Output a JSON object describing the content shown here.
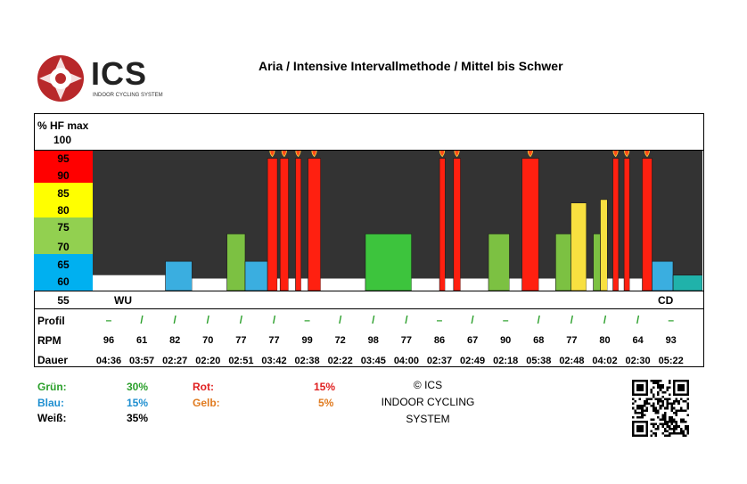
{
  "logo": {
    "name": "ICS",
    "sub": "INDOOR CYCLING SYSTEM"
  },
  "title": "Aria / Intensive Intervallmethode / Mittel bis Schwer",
  "y_title": "% HF max",
  "zones": [
    {
      "labels": [
        "95",
        "90"
      ],
      "color": "#ff0000"
    },
    {
      "labels": [
        "85",
        "80"
      ],
      "color": "#ffff00"
    },
    {
      "labels": [
        "75",
        "70"
      ],
      "color": "#92d050"
    },
    {
      "labels": [
        "65",
        "60"
      ],
      "color": "#00b0f0"
    }
  ],
  "top_tick": "100",
  "bottom_tick": "55",
  "chart_data": {
    "type": "bar",
    "ylabel": "% HF max",
    "ylim": [
      55,
      100
    ],
    "segment_labels": [
      "WU",
      "CD"
    ],
    "bars": [
      {
        "start": 0.0,
        "end": 5.2,
        "value": 59.5,
        "color": "#ffffff",
        "outline": false
      },
      {
        "start": 5.2,
        "end": 7.1,
        "value": 63.5,
        "color": "#3aaee0"
      },
      {
        "start": 7.1,
        "end": 9.6,
        "value": 58.5,
        "color": "#ffffff",
        "outline": false
      },
      {
        "start": 9.6,
        "end": 10.9,
        "value": 71.5,
        "color": "#7cc142"
      },
      {
        "start": 10.9,
        "end": 12.5,
        "value": 63.5,
        "color": "#3aaee0"
      },
      {
        "start": 12.5,
        "end": 13.2,
        "value": 93.5,
        "color": "#ff2010",
        "flame": true
      },
      {
        "start": 13.2,
        "end": 13.4,
        "value": 58.5,
        "color": "#ffffff",
        "outline": false
      },
      {
        "start": 13.4,
        "end": 14.0,
        "value": 93.5,
        "color": "#ff2010",
        "flame": true
      },
      {
        "start": 14.0,
        "end": 14.5,
        "value": 58.5,
        "color": "#ffffff",
        "outline": false
      },
      {
        "start": 14.5,
        "end": 14.9,
        "value": 93.5,
        "color": "#ff2010",
        "flame": true
      },
      {
        "start": 14.9,
        "end": 15.4,
        "value": 58.5,
        "color": "#ffffff",
        "outline": false
      },
      {
        "start": 15.4,
        "end": 16.3,
        "value": 93.5,
        "color": "#ff2010",
        "flame": true
      },
      {
        "start": 16.3,
        "end": 19.5,
        "value": 58.5,
        "color": "#ffffff",
        "outline": false
      },
      {
        "start": 19.5,
        "end": 22.8,
        "value": 71.5,
        "color": "#3dc43d"
      },
      {
        "start": 22.8,
        "end": 24.8,
        "value": 58.5,
        "color": "#ffffff",
        "outline": false
      },
      {
        "start": 24.8,
        "end": 25.2,
        "value": 93.5,
        "color": "#ff2010",
        "flame": true
      },
      {
        "start": 25.2,
        "end": 25.8,
        "value": 58.5,
        "color": "#ffffff",
        "outline": false
      },
      {
        "start": 25.8,
        "end": 26.3,
        "value": 93.5,
        "color": "#ff2010",
        "flame": true
      },
      {
        "start": 26.3,
        "end": 28.3,
        "value": 58.5,
        "color": "#ffffff",
        "outline": false
      },
      {
        "start": 28.3,
        "end": 29.8,
        "value": 71.5,
        "color": "#7cc142"
      },
      {
        "start": 29.8,
        "end": 30.7,
        "value": 58.5,
        "color": "#ffffff",
        "outline": false
      },
      {
        "start": 30.7,
        "end": 31.9,
        "value": 93.5,
        "color": "#ff2010",
        "flame": true
      },
      {
        "start": 31.9,
        "end": 33.1,
        "value": 58.5,
        "color": "#ffffff",
        "outline": false
      },
      {
        "start": 33.1,
        "end": 34.2,
        "value": 71.5,
        "color": "#7cc142"
      },
      {
        "start": 34.2,
        "end": 35.3,
        "value": 80.5,
        "color": "#f8e040"
      },
      {
        "start": 35.3,
        "end": 35.8,
        "value": 58.5,
        "color": "#ffffff",
        "outline": false
      },
      {
        "start": 35.8,
        "end": 36.3,
        "value": 71.5,
        "color": "#7cc142"
      },
      {
        "start": 36.3,
        "end": 36.8,
        "value": 81.5,
        "color": "#f8e040"
      },
      {
        "start": 36.8,
        "end": 37.2,
        "value": 58.5,
        "color": "#ffffff",
        "outline": false
      },
      {
        "start": 37.2,
        "end": 37.6,
        "value": 93.5,
        "color": "#ff2010",
        "flame": true
      },
      {
        "start": 37.6,
        "end": 38.0,
        "value": 58.5,
        "color": "#ffffff",
        "outline": false
      },
      {
        "start": 38.0,
        "end": 38.4,
        "value": 93.5,
        "color": "#ff2010",
        "flame": true
      },
      {
        "start": 38.4,
        "end": 39.3,
        "value": 58.5,
        "color": "#ffffff",
        "outline": false
      },
      {
        "start": 39.3,
        "end": 40.0,
        "value": 93.5,
        "color": "#ff2010",
        "flame": true
      },
      {
        "start": 40.0,
        "end": 41.5,
        "value": 63.5,
        "color": "#3aaee0"
      },
      {
        "start": 41.5,
        "end": 43.6,
        "value": 59.5,
        "color": "#20b2aa"
      }
    ],
    "total_minutes": 43.6
  },
  "rows": {
    "profil_label": "Profil",
    "rpm_label": "RPM",
    "dauer_label": "Dauer",
    "profil": [
      "–",
      "/",
      "/",
      "/",
      "/",
      "/",
      "–",
      "/",
      "/",
      "/",
      "–",
      "/",
      "–",
      "/",
      "/",
      "/",
      "/",
      "–"
    ],
    "rpm": [
      "96",
      "61",
      "82",
      "70",
      "77",
      "77",
      "99",
      "72",
      "98",
      "77",
      "86",
      "67",
      "90",
      "68",
      "77",
      "80",
      "64",
      "93"
    ],
    "dauer": [
      "04:36",
      "03:57",
      "02:27",
      "02:20",
      "02:51",
      "03:42",
      "02:38",
      "02:22",
      "03:45",
      "04:00",
      "02:37",
      "02:49",
      "02:18",
      "05:38",
      "02:48",
      "04:02",
      "02:30",
      "05:22"
    ]
  },
  "legend": {
    "gruen_label": "Grün:",
    "gruen_value": "30%",
    "gruen_color": "#2ca02c",
    "blau_label": "Blau:",
    "blau_value": "15%",
    "blau_color": "#1f8fd0",
    "weiss_label": "Weiß:",
    "weiss_value": "35%",
    "rot_label": "Rot:",
    "rot_value": "15%",
    "rot_color": "#e02020",
    "gelb_label": "Gelb:",
    "gelb_value": "5%",
    "gelb_color": "#e07b20"
  },
  "copyright": {
    "line1": "© ICS",
    "line2": "INDOOR CYCLING",
    "line3": "SYSTEM"
  }
}
